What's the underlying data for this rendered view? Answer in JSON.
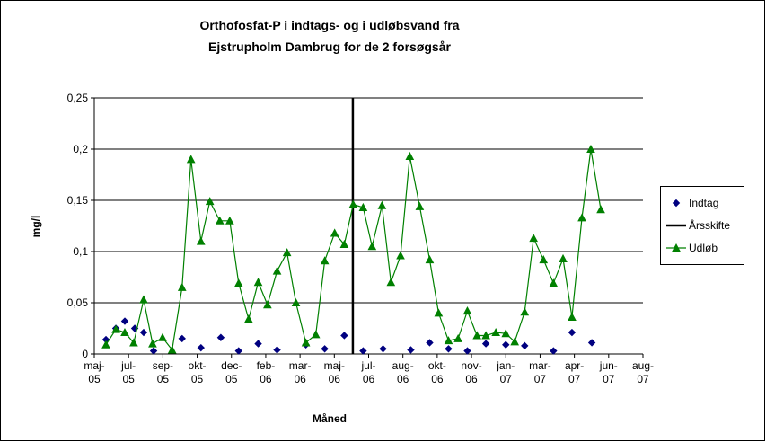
{
  "chart_data": {
    "type": "line",
    "title": [
      "Orthofosfat-P i indtags- og i udløbsvand fra",
      "Ejstrupholm Dambrug for de 2 forsøgsår"
    ],
    "xlabel": "Måned",
    "ylabel": "mg/l",
    "xlim": [
      0,
      16
    ],
    "xticks": [
      {
        "value": 0,
        "label": "maj-05"
      },
      {
        "value": 1,
        "label": "jul-05"
      },
      {
        "value": 2,
        "label": "sep-05"
      },
      {
        "value": 3,
        "label": "okt-05"
      },
      {
        "value": 4,
        "label": "dec-05"
      },
      {
        "value": 5,
        "label": "feb-06"
      },
      {
        "value": 6,
        "label": "mar-06"
      },
      {
        "value": 7,
        "label": "maj-06"
      },
      {
        "value": 8,
        "label": "jul-06"
      },
      {
        "value": 9,
        "label": "aug-06"
      },
      {
        "value": 10,
        "label": "okt-06"
      },
      {
        "value": 11,
        "label": "nov-06"
      },
      {
        "value": 12,
        "label": "jan-07"
      },
      {
        "value": 13,
        "label": "mar-07"
      },
      {
        "value": 14,
        "label": "apr-07"
      },
      {
        "value": 15,
        "label": "jun-07"
      },
      {
        "value": 16,
        "label": "aug-07"
      }
    ],
    "ylim": [
      0,
      0.25
    ],
    "yticks": [
      0,
      {
        "value": 0.05,
        "label": "0,05"
      },
      {
        "value": 0.1,
        "label": "0,1"
      },
      {
        "value": 0.15,
        "label": "0,15"
      },
      {
        "value": 0.2,
        "label": "0,2"
      },
      {
        "value": 0.25,
        "label": "0,25"
      }
    ],
    "grid": true,
    "legend": "right",
    "series": [
      {
        "name": "Indtag",
        "color": "#000080",
        "marker": "diamond",
        "line": false,
        "x": [
          0.34,
          0.63,
          0.89,
          1.18,
          1.44,
          1.73,
          2.56,
          3.11,
          3.69,
          4.21,
          4.78,
          5.33,
          6.17,
          6.72,
          7.29,
          7.84,
          8.42,
          9.23,
          9.78,
          10.33,
          10.88,
          11.42,
          12.0,
          12.55,
          13.39,
          13.93,
          14.51
        ],
        "values": [
          0.014,
          0.025,
          0.032,
          0.025,
          0.021,
          0.003,
          0.015,
          0.006,
          0.016,
          0.003,
          0.01,
          0.004,
          0.009,
          0.005,
          0.018,
          0.003,
          0.005,
          0.004,
          0.011,
          0.005,
          0.003,
          0.01,
          0.009,
          0.008,
          0.003,
          0.021,
          0.011
        ]
      },
      {
        "name": "Årsskifte",
        "color": "#000000",
        "marker": "none",
        "line": true,
        "x": [
          7.54,
          7.54
        ],
        "values": [
          0,
          0.25
        ]
      },
      {
        "name": "Udløb",
        "color": "#008000",
        "marker": "triangle",
        "line": true,
        "x": [
          0.34,
          0.63,
          0.89,
          1.15,
          1.44,
          1.7,
          1.99,
          2.27,
          2.56,
          2.82,
          3.11,
          3.37,
          3.66,
          3.95,
          4.21,
          4.5,
          4.78,
          5.05,
          5.33,
          5.62,
          5.88,
          6.17,
          6.46,
          6.72,
          7.01,
          7.29,
          7.55,
          7.84,
          8.1,
          8.39,
          8.65,
          8.93,
          9.2,
          9.49,
          9.78,
          10.04,
          10.33,
          10.61,
          10.88,
          11.16,
          11.42,
          11.71,
          12.0,
          12.26,
          12.55,
          12.81,
          13.1,
          13.39,
          13.67,
          13.93,
          14.22,
          14.48,
          14.77
        ],
        "values": [
          0.009,
          0.024,
          0.021,
          0.011,
          0.053,
          0.01,
          0.016,
          0.004,
          0.065,
          0.19,
          0.11,
          0.149,
          0.13,
          0.13,
          0.069,
          0.034,
          0.07,
          0.048,
          0.081,
          0.099,
          0.05,
          0.011,
          0.019,
          0.091,
          0.118,
          0.107,
          0.146,
          0.143,
          0.105,
          0.145,
          0.07,
          0.096,
          0.193,
          0.144,
          0.092,
          0.04,
          0.013,
          0.015,
          0.042,
          0.018,
          0.018,
          0.021,
          0.02,
          0.012,
          0.041,
          0.113,
          0.092,
          0.069,
          0.093,
          0.036,
          0.133,
          0.2,
          0.141
        ]
      }
    ]
  }
}
